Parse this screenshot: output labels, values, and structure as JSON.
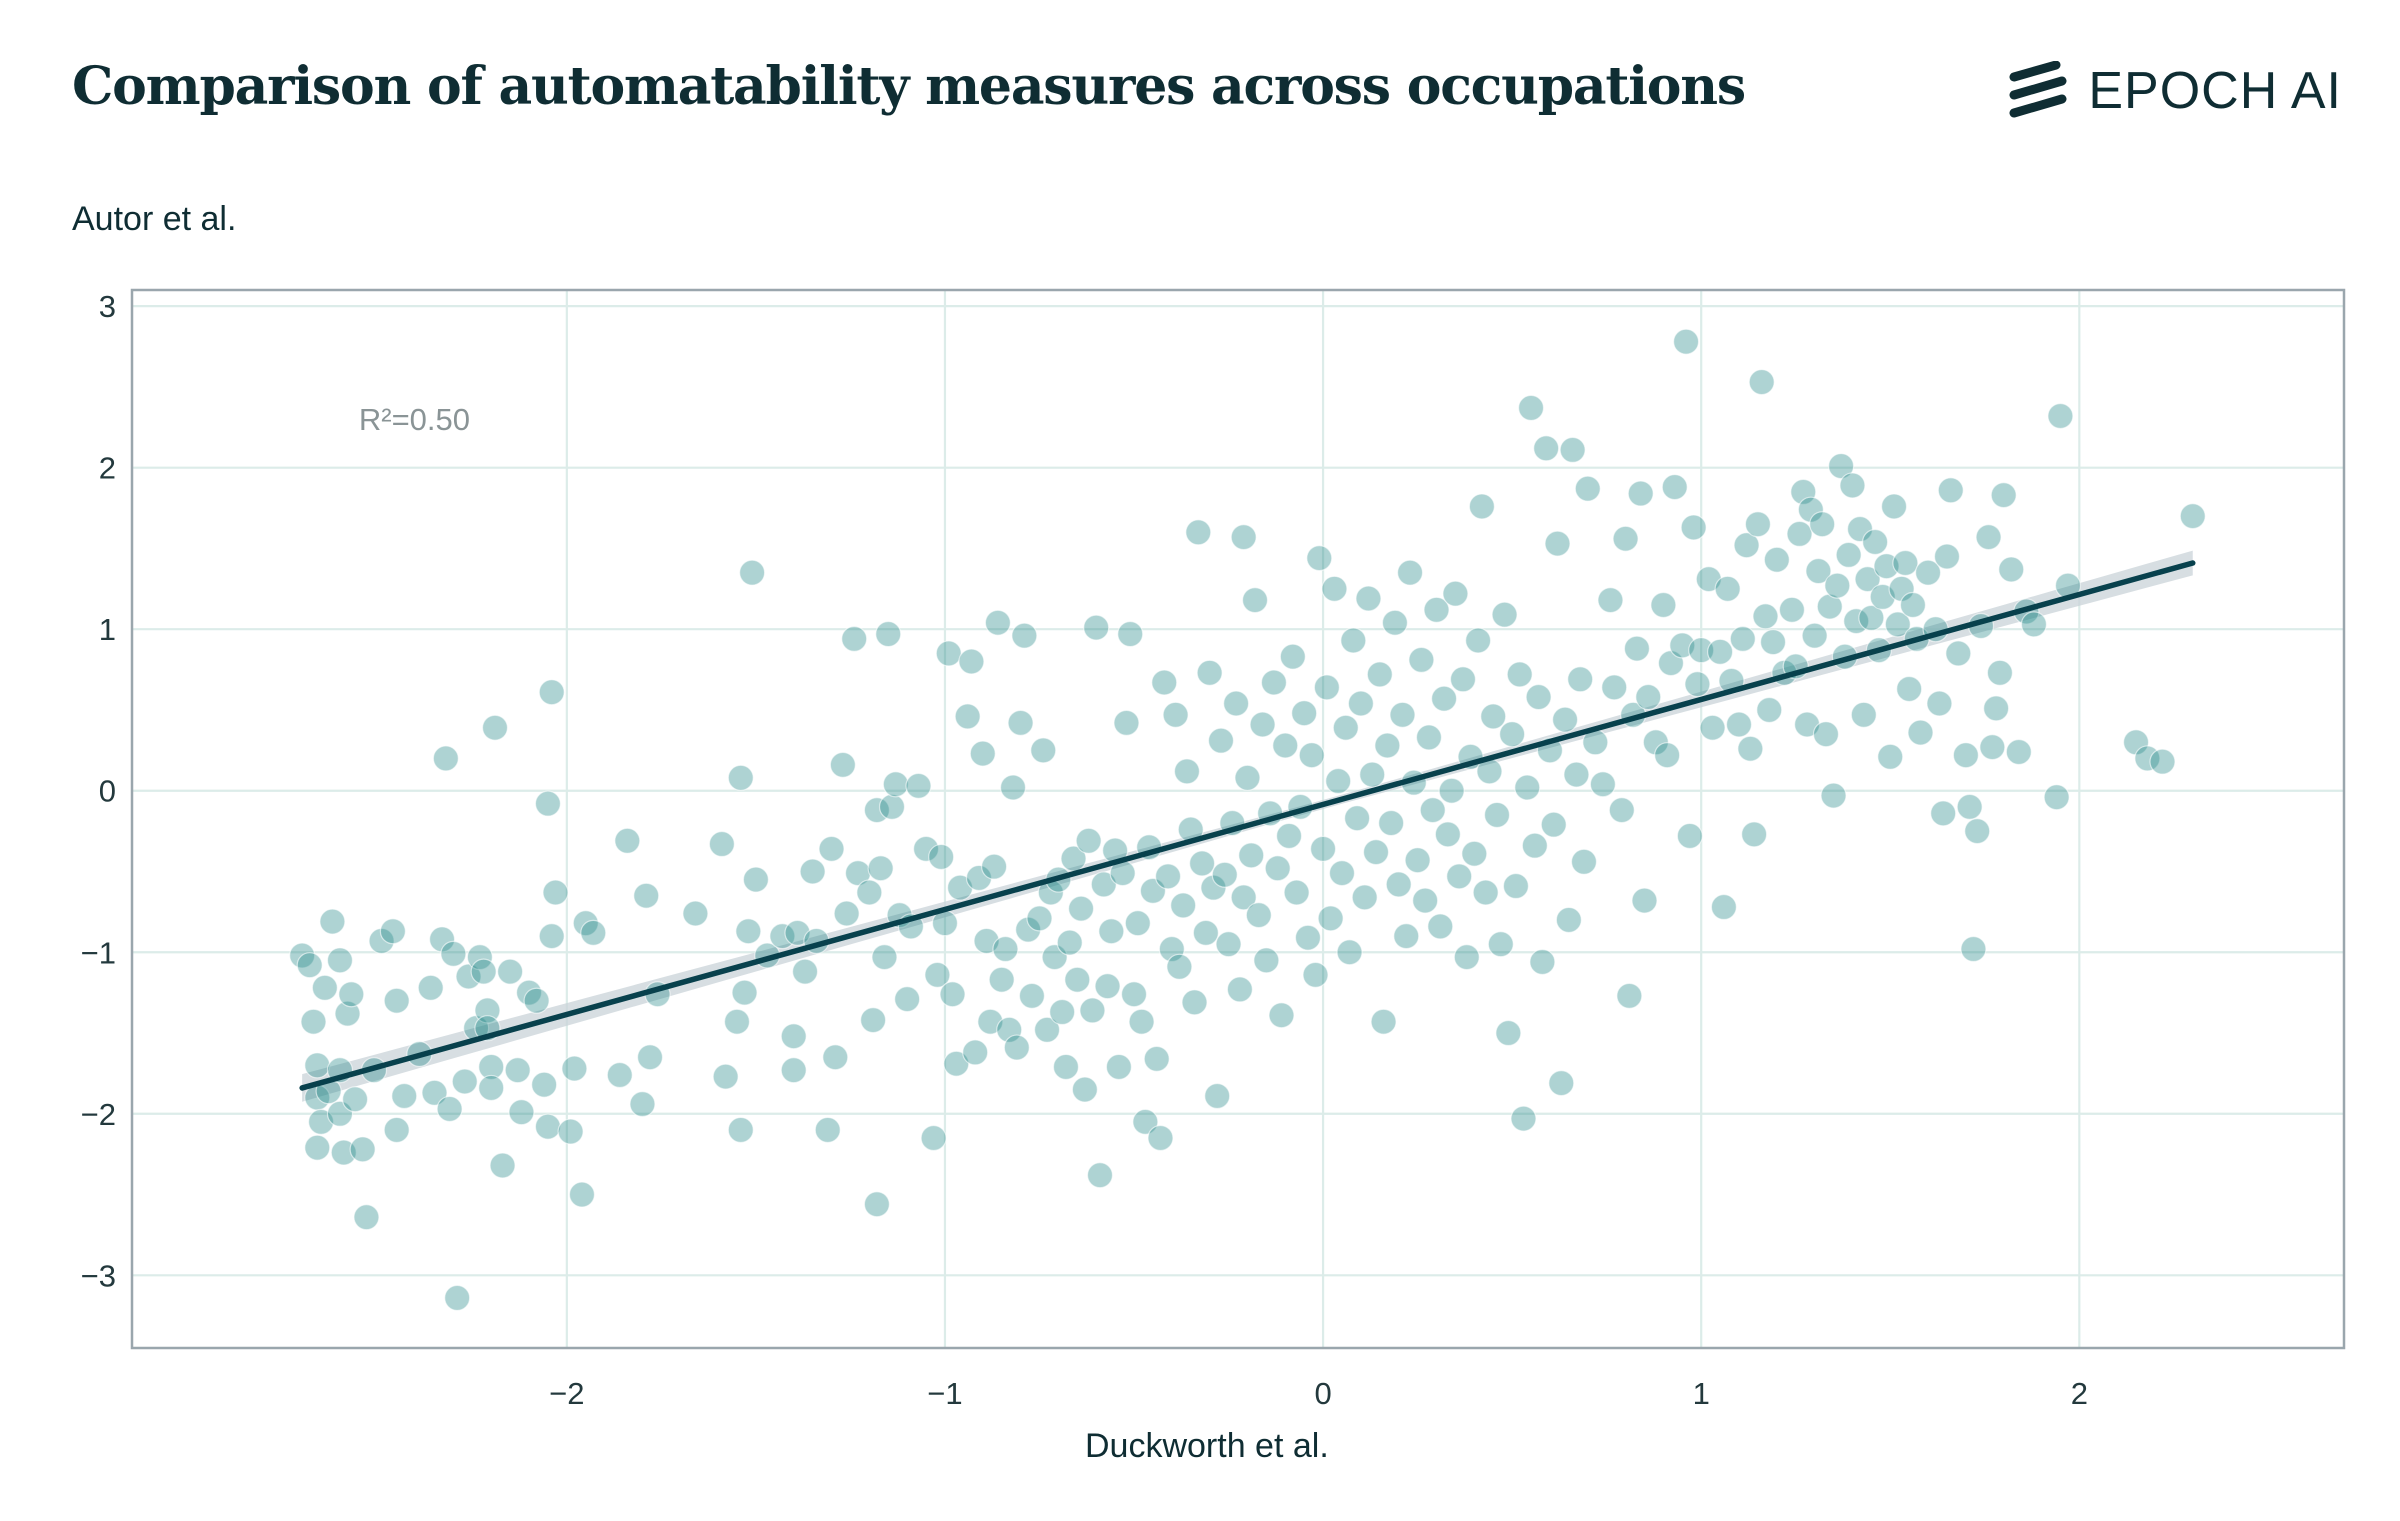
{
  "header": {
    "title": "Comparison of automatability measures across occupations",
    "logo_text": "EPOCH AI",
    "logo_icon": "epoch-stripes-icon"
  },
  "colors": {
    "text": "#0f2d33",
    "points": "#2b8c8c",
    "fit_line": "#08414d",
    "ci_band": "#c9d3d8",
    "grid": "#dcece9",
    "frame": "#9aa6ad"
  },
  "chart_data": {
    "type": "scatter",
    "xlabel": "Duckworth et al.",
    "ylabel": "Autor et al.",
    "xlim": [
      -3.15,
      2.7
    ],
    "ylim": [
      -3.45,
      3.1
    ],
    "xticks": [
      -2,
      -1,
      0,
      1,
      2
    ],
    "yticks": [
      -3,
      -2,
      -1,
      0,
      1,
      2,
      3
    ],
    "xtick_labels": [
      "−2",
      "−1",
      "0",
      "1",
      "2"
    ],
    "ytick_labels": [
      "−3",
      "−2",
      "−1",
      "0",
      "1",
      "2",
      "3"
    ],
    "grid": true,
    "annotation": "R²=0.50",
    "fit_line": {
      "x": [
        -2.7,
        2.3
      ],
      "y": [
        -1.84,
        1.41
      ],
      "slope": 0.65,
      "intercept": -0.085,
      "r2": 0.5,
      "ci_half_width": 0.06
    },
    "points": [
      [
        -2.7,
        -1.02
      ],
      [
        -2.68,
        -1.08
      ],
      [
        -2.67,
        -1.43
      ],
      [
        -2.66,
        -1.7
      ],
      [
        -2.66,
        -1.9
      ],
      [
        -2.65,
        -2.05
      ],
      [
        -2.66,
        -2.21
      ],
      [
        -2.64,
        -1.22
      ],
      [
        -2.63,
        -1.86
      ],
      [
        -2.62,
        -0.81
      ],
      [
        -2.6,
        -1.05
      ],
      [
        -2.6,
        -1.73
      ],
      [
        -2.6,
        -2.0
      ],
      [
        -2.59,
        -2.24
      ],
      [
        -2.58,
        -1.38
      ],
      [
        -2.57,
        -1.26
      ],
      [
        -2.56,
        -1.91
      ],
      [
        -2.54,
        -2.22
      ],
      [
        -2.53,
        -2.64
      ],
      [
        -2.51,
        -1.73
      ],
      [
        -2.49,
        -0.93
      ],
      [
        -2.46,
        -0.87
      ],
      [
        -2.45,
        -1.3
      ],
      [
        -2.45,
        -2.1
      ],
      [
        -2.43,
        -1.89
      ],
      [
        -2.39,
        -1.63
      ],
      [
        -2.36,
        -1.22
      ],
      [
        -2.35,
        -1.87
      ],
      [
        -2.33,
        -0.92
      ],
      [
        -2.32,
        0.2
      ],
      [
        -2.31,
        -1.97
      ],
      [
        -2.3,
        -1.01
      ],
      [
        -2.29,
        -3.14
      ],
      [
        -2.27,
        -1.8
      ],
      [
        -2.26,
        -1.15
      ],
      [
        -2.24,
        -1.47
      ],
      [
        -2.23,
        -1.03
      ],
      [
        -2.22,
        -1.12
      ],
      [
        -2.21,
        -1.36
      ],
      [
        -2.21,
        -1.47
      ],
      [
        -2.2,
        -1.71
      ],
      [
        -2.2,
        -1.84
      ],
      [
        -2.19,
        0.39
      ],
      [
        -2.17,
        -2.32
      ],
      [
        -2.15,
        -1.12
      ],
      [
        -2.13,
        -1.73
      ],
      [
        -2.12,
        -1.99
      ],
      [
        -2.1,
        -1.25
      ],
      [
        -2.08,
        -1.3
      ],
      [
        -2.06,
        -1.82
      ],
      [
        -2.05,
        -2.08
      ],
      [
        -2.05,
        -0.08
      ],
      [
        -2.04,
        0.61
      ],
      [
        -2.04,
        -0.9
      ],
      [
        -2.03,
        -0.63
      ],
      [
        -1.99,
        -2.11
      ],
      [
        -1.98,
        -1.72
      ],
      [
        -1.96,
        -2.5
      ],
      [
        -1.95,
        -0.82
      ],
      [
        -1.93,
        -0.88
      ],
      [
        -1.86,
        -1.76
      ],
      [
        -1.84,
        -0.31
      ],
      [
        -1.8,
        -1.94
      ],
      [
        -1.79,
        -0.65
      ],
      [
        -1.78,
        -1.65
      ],
      [
        -1.76,
        -1.26
      ],
      [
        -1.66,
        -0.76
      ],
      [
        -1.59,
        -0.33
      ],
      [
        -1.58,
        -1.77
      ],
      [
        -1.55,
        -1.43
      ],
      [
        -1.54,
        0.08
      ],
      [
        -1.54,
        -2.1
      ],
      [
        -1.53,
        -1.25
      ],
      [
        -1.52,
        -0.87
      ],
      [
        -1.51,
        1.35
      ],
      [
        -1.5,
        -0.55
      ],
      [
        -1.47,
        -1.02
      ],
      [
        -1.43,
        -0.9
      ],
      [
        -1.4,
        -1.73
      ],
      [
        -1.4,
        -1.52
      ],
      [
        -1.39,
        -0.88
      ],
      [
        -1.37,
        -1.12
      ],
      [
        -1.35,
        -0.5
      ],
      [
        -1.34,
        -0.93
      ],
      [
        -1.31,
        -2.1
      ],
      [
        -1.3,
        -0.36
      ],
      [
        -1.29,
        -1.65
      ],
      [
        -1.27,
        0.16
      ],
      [
        -1.26,
        -0.76
      ],
      [
        -1.24,
        0.94
      ],
      [
        -1.23,
        -0.51
      ],
      [
        -1.2,
        -0.63
      ],
      [
        -1.19,
        -1.42
      ],
      [
        -1.18,
        -0.12
      ],
      [
        -1.18,
        -2.56
      ],
      [
        -1.17,
        -0.48
      ],
      [
        -1.16,
        -1.03
      ],
      [
        -1.15,
        0.97
      ],
      [
        -1.14,
        -0.1
      ],
      [
        -1.13,
        0.04
      ],
      [
        -1.12,
        -0.77
      ],
      [
        -1.1,
        -1.29
      ],
      [
        -1.09,
        -0.84
      ],
      [
        -1.07,
        0.03
      ],
      [
        -1.05,
        -0.36
      ],
      [
        -1.03,
        -2.15
      ],
      [
        -1.02,
        -1.14
      ],
      [
        -1.01,
        -0.41
      ],
      [
        -1.0,
        -0.82
      ],
      [
        -0.99,
        0.85
      ],
      [
        -0.98,
        -1.26
      ],
      [
        -0.97,
        -1.69
      ],
      [
        -0.96,
        -0.6
      ],
      [
        -0.94,
        0.46
      ],
      [
        -0.93,
        0.8
      ],
      [
        -0.92,
        -1.62
      ],
      [
        -0.91,
        -0.54
      ],
      [
        -0.9,
        0.23
      ],
      [
        -0.89,
        -0.93
      ],
      [
        -0.88,
        -1.43
      ],
      [
        -0.87,
        -0.47
      ],
      [
        -0.86,
        1.04
      ],
      [
        -0.85,
        -1.17
      ],
      [
        -0.84,
        -0.98
      ],
      [
        -0.83,
        -1.48
      ],
      [
        -0.82,
        0.02
      ],
      [
        -0.81,
        -1.59
      ],
      [
        -0.8,
        0.42
      ],
      [
        -0.79,
        0.96
      ],
      [
        -0.78,
        -0.86
      ],
      [
        -0.77,
        -1.27
      ],
      [
        -0.75,
        -0.79
      ],
      [
        -0.74,
        0.25
      ],
      [
        -0.73,
        -1.48
      ],
      [
        -0.72,
        -0.63
      ],
      [
        -0.71,
        -1.03
      ],
      [
        -0.7,
        -0.55
      ],
      [
        -0.69,
        -1.37
      ],
      [
        -0.68,
        -1.71
      ],
      [
        -0.67,
        -0.94
      ],
      [
        -0.66,
        -0.42
      ],
      [
        -0.65,
        -1.17
      ],
      [
        -0.64,
        -0.73
      ],
      [
        -0.63,
        -1.85
      ],
      [
        -0.62,
        -0.31
      ],
      [
        -0.61,
        -1.36
      ],
      [
        -0.6,
        1.01
      ],
      [
        -0.59,
        -2.38
      ],
      [
        -0.58,
        -0.58
      ],
      [
        -0.57,
        -1.21
      ],
      [
        -0.56,
        -0.87
      ],
      [
        -0.55,
        -0.37
      ],
      [
        -0.54,
        -1.71
      ],
      [
        -0.53,
        -0.51
      ],
      [
        -0.52,
        0.42
      ],
      [
        -0.51,
        0.97
      ],
      [
        -0.5,
        -1.26
      ],
      [
        -0.49,
        -0.82
      ],
      [
        -0.48,
        -1.43
      ],
      [
        -0.47,
        -2.05
      ],
      [
        -0.46,
        -0.35
      ],
      [
        -0.45,
        -0.62
      ],
      [
        -0.44,
        -1.66
      ],
      [
        -0.43,
        -2.15
      ],
      [
        -0.42,
        0.67
      ],
      [
        -0.41,
        -0.53
      ],
      [
        -0.4,
        -0.98
      ],
      [
        -0.39,
        0.47
      ],
      [
        -0.38,
        -1.09
      ],
      [
        -0.37,
        -0.71
      ],
      [
        -0.36,
        0.12
      ],
      [
        -0.35,
        -0.24
      ],
      [
        -0.34,
        -1.31
      ],
      [
        -0.33,
        1.6
      ],
      [
        -0.32,
        -0.45
      ],
      [
        -0.31,
        -0.88
      ],
      [
        -0.3,
        0.73
      ],
      [
        -0.29,
        -0.6
      ],
      [
        -0.28,
        -1.89
      ],
      [
        -0.27,
        0.31
      ],
      [
        -0.26,
        -0.52
      ],
      [
        -0.25,
        -0.95
      ],
      [
        -0.24,
        -0.2
      ],
      [
        -0.23,
        0.54
      ],
      [
        -0.22,
        -1.23
      ],
      [
        -0.21,
        1.57
      ],
      [
        -0.21,
        -0.66
      ],
      [
        -0.2,
        0.08
      ],
      [
        -0.19,
        -0.4
      ],
      [
        -0.18,
        1.18
      ],
      [
        -0.17,
        -0.77
      ],
      [
        -0.16,
        0.41
      ],
      [
        -0.15,
        -1.05
      ],
      [
        -0.14,
        -0.14
      ],
      [
        -0.13,
        0.67
      ],
      [
        -0.12,
        -0.48
      ],
      [
        -0.11,
        -1.39
      ],
      [
        -0.1,
        0.28
      ],
      [
        -0.09,
        -0.28
      ],
      [
        -0.08,
        0.83
      ],
      [
        -0.07,
        -0.63
      ],
      [
        -0.06,
        -0.1
      ],
      [
        -0.05,
        0.48
      ],
      [
        -0.04,
        -0.91
      ],
      [
        -0.03,
        0.22
      ],
      [
        -0.02,
        -1.14
      ],
      [
        -0.01,
        1.44
      ],
      [
        0.0,
        -0.36
      ],
      [
        0.01,
        0.64
      ],
      [
        0.02,
        -0.79
      ],
      [
        0.03,
        1.25
      ],
      [
        0.04,
        0.06
      ],
      [
        0.05,
        -0.51
      ],
      [
        0.06,
        0.39
      ],
      [
        0.07,
        -1.0
      ],
      [
        0.08,
        0.93
      ],
      [
        0.09,
        -0.17
      ],
      [
        0.1,
        0.54
      ],
      [
        0.11,
        -0.66
      ],
      [
        0.12,
        1.19
      ],
      [
        0.13,
        0.1
      ],
      [
        0.14,
        -0.38
      ],
      [
        0.15,
        0.72
      ],
      [
        0.16,
        -1.43
      ],
      [
        0.17,
        0.28
      ],
      [
        0.18,
        -0.2
      ],
      [
        0.19,
        1.04
      ],
      [
        0.2,
        -0.58
      ],
      [
        0.21,
        0.47
      ],
      [
        0.22,
        -0.9
      ],
      [
        0.23,
        1.35
      ],
      [
        0.24,
        0.05
      ],
      [
        0.25,
        -0.43
      ],
      [
        0.26,
        0.81
      ],
      [
        0.27,
        -0.68
      ],
      [
        0.28,
        0.33
      ],
      [
        0.29,
        -0.12
      ],
      [
        0.3,
        1.12
      ],
      [
        0.31,
        -0.84
      ],
      [
        0.32,
        0.57
      ],
      [
        0.33,
        -0.27
      ],
      [
        0.34,
        0.0
      ],
      [
        0.35,
        1.22
      ],
      [
        0.36,
        -0.53
      ],
      [
        0.37,
        0.69
      ],
      [
        0.38,
        -1.03
      ],
      [
        0.39,
        0.21
      ],
      [
        0.4,
        -0.39
      ],
      [
        0.41,
        0.93
      ],
      [
        0.42,
        1.76
      ],
      [
        0.43,
        -0.63
      ],
      [
        0.44,
        0.12
      ],
      [
        0.45,
        0.46
      ],
      [
        0.46,
        -0.15
      ],
      [
        0.47,
        -0.95
      ],
      [
        0.48,
        1.09
      ],
      [
        0.49,
        -1.5
      ],
      [
        0.5,
        0.35
      ],
      [
        0.51,
        -0.59
      ],
      [
        0.52,
        0.72
      ],
      [
        0.53,
        -2.03
      ],
      [
        0.54,
        0.02
      ],
      [
        0.55,
        2.37
      ],
      [
        0.56,
        -0.34
      ],
      [
        0.57,
        0.58
      ],
      [
        0.58,
        -1.06
      ],
      [
        0.59,
        2.12
      ],
      [
        0.6,
        0.25
      ],
      [
        0.61,
        -0.21
      ],
      [
        0.62,
        1.53
      ],
      [
        0.63,
        -1.81
      ],
      [
        0.64,
        0.44
      ],
      [
        0.65,
        -0.8
      ],
      [
        0.66,
        2.11
      ],
      [
        0.67,
        0.1
      ],
      [
        0.68,
        0.69
      ],
      [
        0.69,
        -0.44
      ],
      [
        0.7,
        1.87
      ],
      [
        0.72,
        0.3
      ],
      [
        0.74,
        0.04
      ],
      [
        0.76,
        1.18
      ],
      [
        0.77,
        0.64
      ],
      [
        0.79,
        -0.12
      ],
      [
        0.8,
        1.56
      ],
      [
        0.81,
        -1.27
      ],
      [
        0.82,
        0.47
      ],
      [
        0.83,
        0.88
      ],
      [
        0.84,
        1.84
      ],
      [
        0.85,
        -0.68
      ],
      [
        0.86,
        0.58
      ],
      [
        0.88,
        0.3
      ],
      [
        0.9,
        1.15
      ],
      [
        0.91,
        0.22
      ],
      [
        0.92,
        0.79
      ],
      [
        0.93,
        1.88
      ],
      [
        0.95,
        0.9
      ],
      [
        0.96,
        2.78
      ],
      [
        0.97,
        -0.28
      ],
      [
        0.98,
        1.63
      ],
      [
        0.99,
        0.66
      ],
      [
        1.0,
        0.87
      ],
      [
        1.02,
        1.31
      ],
      [
        1.03,
        0.39
      ],
      [
        1.05,
        0.86
      ],
      [
        1.06,
        -0.72
      ],
      [
        1.07,
        1.25
      ],
      [
        1.08,
        0.68
      ],
      [
        1.1,
        0.41
      ],
      [
        1.11,
        0.94
      ],
      [
        1.12,
        1.52
      ],
      [
        1.13,
        0.26
      ],
      [
        1.14,
        -0.27
      ],
      [
        1.15,
        1.65
      ],
      [
        1.16,
        2.53
      ],
      [
        1.17,
        1.08
      ],
      [
        1.18,
        0.5
      ],
      [
        1.19,
        0.92
      ],
      [
        1.2,
        1.43
      ],
      [
        1.22,
        0.73
      ],
      [
        1.24,
        1.12
      ],
      [
        1.25,
        0.77
      ],
      [
        1.26,
        1.59
      ],
      [
        1.27,
        1.85
      ],
      [
        1.28,
        0.41
      ],
      [
        1.29,
        1.74
      ],
      [
        1.3,
        0.96
      ],
      [
        1.31,
        1.36
      ],
      [
        1.32,
        1.65
      ],
      [
        1.33,
        0.35
      ],
      [
        1.34,
        1.14
      ],
      [
        1.35,
        -0.03
      ],
      [
        1.36,
        1.27
      ],
      [
        1.37,
        2.01
      ],
      [
        1.38,
        0.83
      ],
      [
        1.39,
        1.46
      ],
      [
        1.4,
        1.89
      ],
      [
        1.41,
        1.05
      ],
      [
        1.42,
        1.62
      ],
      [
        1.43,
        0.47
      ],
      [
        1.44,
        1.31
      ],
      [
        1.45,
        1.07
      ],
      [
        1.46,
        1.54
      ],
      [
        1.47,
        0.87
      ],
      [
        1.48,
        1.2
      ],
      [
        1.49,
        1.39
      ],
      [
        1.5,
        0.21
      ],
      [
        1.51,
        1.76
      ],
      [
        1.52,
        1.03
      ],
      [
        1.53,
        1.25
      ],
      [
        1.54,
        1.41
      ],
      [
        1.55,
        0.63
      ],
      [
        1.56,
        1.15
      ],
      [
        1.57,
        0.94
      ],
      [
        1.58,
        0.36
      ],
      [
        1.6,
        1.35
      ],
      [
        1.62,
        1.0
      ],
      [
        1.63,
        0.54
      ],
      [
        1.64,
        -0.14
      ],
      [
        1.65,
        1.45
      ],
      [
        1.66,
        1.86
      ],
      [
        1.68,
        0.85
      ],
      [
        1.7,
        0.22
      ],
      [
        1.71,
        -0.1
      ],
      [
        1.72,
        -0.98
      ],
      [
        1.73,
        -0.25
      ],
      [
        1.74,
        1.02
      ],
      [
        1.76,
        1.57
      ],
      [
        1.77,
        0.27
      ],
      [
        1.78,
        0.51
      ],
      [
        1.79,
        0.73
      ],
      [
        1.8,
        1.83
      ],
      [
        1.82,
        1.37
      ],
      [
        1.84,
        0.24
      ],
      [
        1.86,
        1.11
      ],
      [
        1.88,
        1.03
      ],
      [
        1.94,
        -0.04
      ],
      [
        1.95,
        2.32
      ],
      [
        1.97,
        1.27
      ],
      [
        2.15,
        0.3
      ],
      [
        2.18,
        0.2
      ],
      [
        2.22,
        0.18
      ],
      [
        2.3,
        1.7
      ]
    ]
  }
}
